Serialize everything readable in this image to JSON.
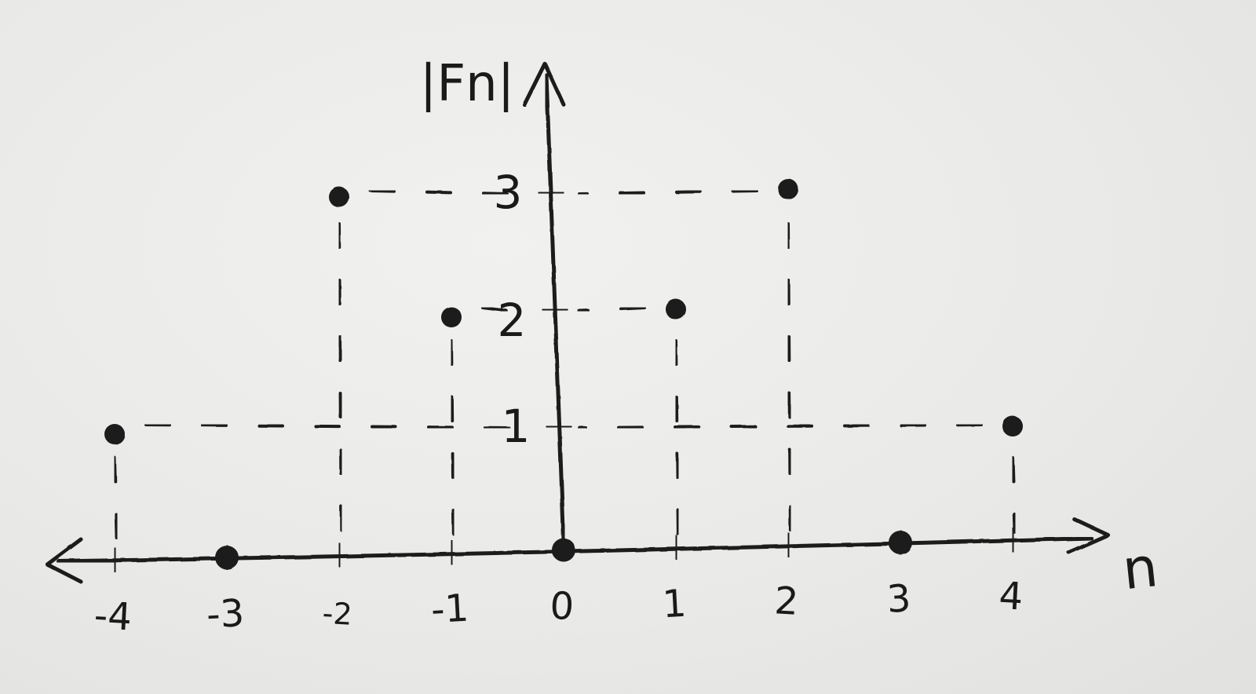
{
  "chart_data": {
    "type": "scatter",
    "title": "",
    "ylabel": "|Fn|",
    "xlabel": "n",
    "x_ticks": [
      "-4",
      "-3",
      "-2",
      "-1",
      "0",
      "1",
      "2",
      "3",
      "4"
    ],
    "y_ticks": [
      "1",
      "2",
      "3"
    ],
    "points": [
      {
        "n": -4,
        "value": 1
      },
      {
        "n": -3,
        "value": 0
      },
      {
        "n": -2,
        "value": 3
      },
      {
        "n": -1,
        "value": 2
      },
      {
        "n": 0,
        "value": 0
      },
      {
        "n": 1,
        "value": 2
      },
      {
        "n": 2,
        "value": 3
      },
      {
        "n": 3,
        "value": 0
      },
      {
        "n": 4,
        "value": 1
      }
    ],
    "xlim": [
      -4,
      4
    ],
    "ylim": [
      0,
      3
    ],
    "grid": false,
    "guide_lines": "dashed",
    "ink_color": "#1a1a1a",
    "paper_color": "#ebebe9"
  }
}
